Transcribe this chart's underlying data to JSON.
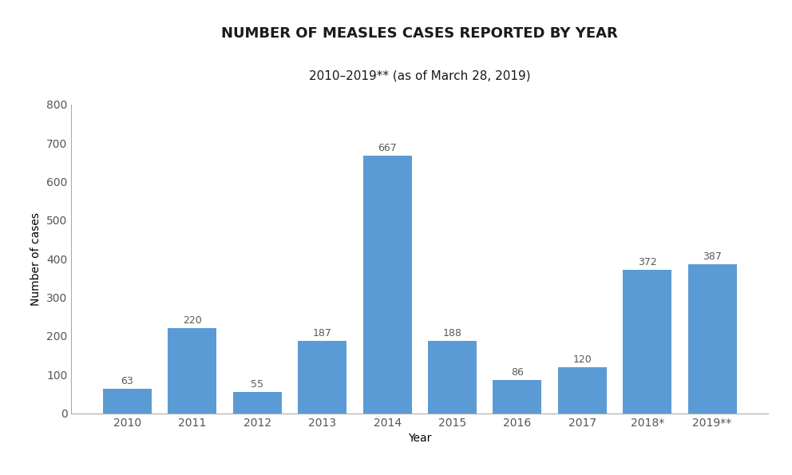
{
  "title": "NUMBER OF MEASLES CASES REPORTED BY YEAR",
  "subtitle": "2010–2019** (as of March 28, 2019)",
  "xlabel": "Year",
  "ylabel": "Number of cases",
  "categories": [
    "2010",
    "2011",
    "2012",
    "2013",
    "2014",
    "2015",
    "2016",
    "2017",
    "2018*",
    "2019**"
  ],
  "values": [
    63,
    220,
    55,
    187,
    667,
    188,
    86,
    120,
    372,
    387
  ],
  "bar_color": "#5b9bd5",
  "ylim": [
    0,
    800
  ],
  "yticks": [
    0,
    100,
    200,
    300,
    400,
    500,
    600,
    700,
    800
  ],
  "background_color": "#ffffff",
  "title_fontsize": 13,
  "subtitle_fontsize": 11,
  "label_fontsize": 10,
  "tick_fontsize": 10,
  "annotation_fontsize": 9,
  "annotation_color": "#595959",
  "bar_width": 0.75
}
